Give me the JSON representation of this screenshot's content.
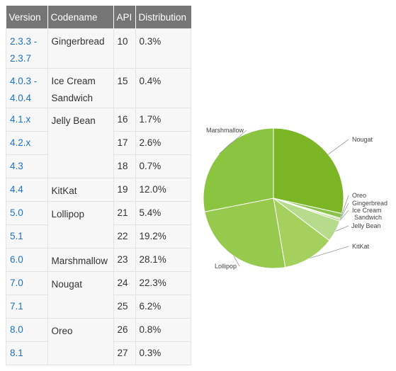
{
  "table": {
    "headers": [
      "Version",
      "Codename",
      "API",
      "Distribution"
    ],
    "rows": [
      {
        "version": "2.3.3 -\n2.3.7",
        "codename": "Gingerbread",
        "codename_rows": 1,
        "api": "10",
        "dist": "0.3%",
        "tall": true
      },
      {
        "version": "4.0.3 -\n4.0.4",
        "codename": "Ice Cream\nSandwich",
        "codename_rows": 1,
        "api": "15",
        "dist": "0.4%",
        "tall": true
      },
      {
        "version": "4.1.x",
        "codename": "Jelly Bean",
        "codename_rows": 3,
        "api": "16",
        "dist": "1.7%"
      },
      {
        "version": "4.2.x",
        "api": "17",
        "dist": "2.6%"
      },
      {
        "version": "4.3",
        "api": "18",
        "dist": "0.7%"
      },
      {
        "version": "4.4",
        "codename": "KitKat",
        "codename_rows": 1,
        "api": "19",
        "dist": "12.0%"
      },
      {
        "version": "5.0",
        "codename": "Lollipop",
        "codename_rows": 2,
        "api": "21",
        "dist": "5.4%"
      },
      {
        "version": "5.1",
        "api": "22",
        "dist": "19.2%"
      },
      {
        "version": "6.0",
        "codename": "Marshmallow",
        "codename_rows": 1,
        "api": "23",
        "dist": "28.1%"
      },
      {
        "version": "7.0",
        "codename": "Nougat",
        "codename_rows": 2,
        "api": "24",
        "dist": "22.3%"
      },
      {
        "version": "7.1",
        "api": "25",
        "dist": "6.2%"
      },
      {
        "version": "8.0",
        "codename": "Oreo",
        "codename_rows": 2,
        "api": "26",
        "dist": "0.8%"
      },
      {
        "version": "8.1",
        "api": "27",
        "dist": "0.3%"
      }
    ]
  },
  "chart_data": {
    "type": "pie",
    "slices": [
      {
        "label": "Nougat",
        "value": 28.5,
        "color": "#7cb526"
      },
      {
        "label": "Oreo",
        "value": 1.1,
        "color": "#8bc34a"
      },
      {
        "label": "Gingerbread",
        "value": 0.3,
        "color": "#b5d88a"
      },
      {
        "label": "Ice Cream Sandwich",
        "value": 0.4,
        "color": "#a6d06b"
      },
      {
        "label": "Jelly Bean",
        "value": 5.0,
        "color": "#b6db8c"
      },
      {
        "label": "KitKat",
        "value": 12.0,
        "color": "#a5d05d"
      },
      {
        "label": "Lollipop",
        "value": 24.6,
        "color": "#98c94f"
      },
      {
        "label": "Marshmallow",
        "value": 28.1,
        "color": "#8bc440"
      }
    ]
  }
}
